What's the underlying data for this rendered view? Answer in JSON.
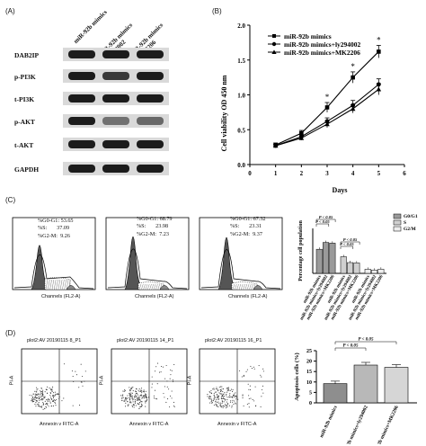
{
  "panels": {
    "a": "(A)",
    "b": "(B)",
    "c": "(C)",
    "d": "(D)"
  },
  "blot": {
    "columns": [
      "miR-92b mimics",
      "miR-92b mimics +ly294002",
      "miR-92b mimics +MK2206"
    ],
    "rows": [
      "DAB2IP",
      "p-PI3K",
      "t-PI3K",
      "p-AKT",
      "t-AKT",
      "GAPDH"
    ]
  },
  "viability": {
    "ylabel": "Cell viability OD 450 nm",
    "xlabel": "Days",
    "legend": [
      "miR-92b mimics",
      "miR-92b mimics+ly294002",
      "miR-92b mimics+MK2206"
    ],
    "asterisk": "*"
  },
  "cellcycle": {
    "stats": [
      {
        "g0g1": "%G0-G1: 53.65",
        "s": "%S:       37.09",
        "g2m": "%G2-M:  9.26"
      },
      {
        "g0g1": "%G0-G1: 68.79",
        "s": "%S:       23.98",
        "g2m": "%G2-M:  7.23"
      },
      {
        "g0g1": "%G0-G1: 67.32",
        "s": "%S:       23.31",
        "g2m": "%G2-M:  9.37"
      }
    ],
    "axis_label": "Channels (FL2-A)"
  },
  "flow": {
    "titles": [
      "plot2:AV 20190115 8_P1",
      "plot2:AV 20190115 14_P1",
      "plot2:AV 20190115 16_P1"
    ],
    "xlabel": "Annexin v FITC-A",
    "ylabel": "PI-A"
  },
  "chart_data": [
    {
      "type": "line",
      "title": "",
      "xlabel": "Days",
      "ylabel": "Cell viability OD 450 nm",
      "x": [
        1,
        2,
        3,
        4,
        5
      ],
      "xlim": [
        0,
        6
      ],
      "ylim": [
        0.0,
        2.0
      ],
      "yticks": [
        "0.0",
        "0.5",
        "1.0",
        "1.5",
        "2.0"
      ],
      "xticks": [
        "0",
        "1",
        "2",
        "3",
        "4",
        "5",
        "6"
      ],
      "series": [
        {
          "name": "miR-92b mimics",
          "values": [
            0.28,
            0.45,
            0.82,
            1.25,
            1.62
          ],
          "errors": [
            0.03,
            0.04,
            0.07,
            0.08,
            0.09
          ],
          "marker": "square"
        },
        {
          "name": "miR-92b mimics+ly294002",
          "values": [
            0.27,
            0.4,
            0.62,
            0.85,
            1.15
          ],
          "errors": [
            0.02,
            0.03,
            0.05,
            0.07,
            0.08
          ],
          "marker": "circle"
        },
        {
          "name": "miR-92b mimics+MK2206",
          "values": [
            0.27,
            0.38,
            0.58,
            0.8,
            1.08
          ],
          "errors": [
            0.02,
            0.03,
            0.05,
            0.06,
            0.08
          ],
          "marker": "triangle"
        }
      ],
      "annotations": [
        "*",
        "*",
        "*"
      ]
    },
    {
      "type": "bar",
      "title": "",
      "ylabel": "Percentage cell population",
      "categories": [
        "miR-92b mimics",
        "miR-92b mimics+ly294002",
        "miR-92b mimics+MK2206"
      ],
      "series": [
        {
          "name": "G0/G1",
          "values": [
            53.65,
            68.79,
            67.32
          ],
          "color": "#9a9a9a"
        },
        {
          "name": "S",
          "values": [
            37.09,
            23.98,
            23.31
          ],
          "color": "#d0d0d0"
        },
        {
          "name": "G2/M",
          "values": [
            9.26,
            7.23,
            9.37
          ],
          "color": "#eeeeee"
        }
      ],
      "ylim": [
        0,
        100
      ],
      "significance": [
        "P < 0.05",
        "P < 0.05",
        "P < 0.05",
        "P < 0.05"
      ]
    },
    {
      "type": "bar",
      "title": "",
      "ylabel": "Apoptosis cells (%)",
      "categories": [
        "miR-92b mimics",
        "miR-92b mimics+ly294002",
        "miR-92b mimics+MK2206"
      ],
      "values": [
        9.2,
        18.1,
        17.0
      ],
      "errors": [
        1.2,
        1.3,
        1.3
      ],
      "yticks": [
        "0",
        "5",
        "10",
        "15",
        "20",
        "25"
      ],
      "ylim": [
        0,
        25
      ],
      "significance": [
        "P < 0.05",
        "P < 0.05"
      ]
    }
  ]
}
